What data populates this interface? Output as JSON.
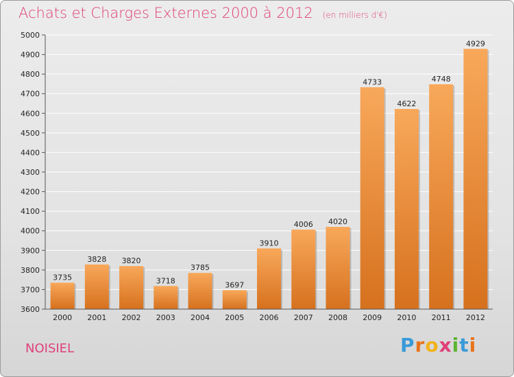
{
  "header": {
    "title": "Achats et Charges Externes 2000 à 2012",
    "subtitle": "(en milliers d'€)"
  },
  "footer": {
    "city": "NOISIEL",
    "logo": [
      "P",
      "r",
      "o",
      "x",
      "i",
      "t",
      "i"
    ],
    "logo_colors": [
      "#3a9ad9",
      "#e8731a",
      "#f2b21b",
      "#e0407a",
      "#5cb531",
      "#3a9ad9",
      "#e8731a"
    ]
  },
  "colors": {
    "bar_top": "#f8a85a",
    "bar_bottom": "#d6711e",
    "grid": "#ffffff",
    "title": "#e0407a"
  },
  "chart_data": {
    "type": "bar",
    "title": "Achats et Charges Externes 2000 à 2012",
    "subtitle": "(en milliers d'€)",
    "categories": [
      "2000",
      "2001",
      "2002",
      "2003",
      "2004",
      "2005",
      "2006",
      "2007",
      "2008",
      "2009",
      "2010",
      "2011",
      "2012"
    ],
    "values": [
      3735,
      3828,
      3820,
      3718,
      3785,
      3697,
      3910,
      4006,
      4020,
      4733,
      4622,
      4748,
      4929
    ],
    "ylim": [
      3600,
      5000
    ],
    "yticks": [
      3600,
      3700,
      3800,
      3900,
      4000,
      4100,
      4200,
      4300,
      4400,
      4500,
      4600,
      4700,
      4800,
      4900,
      5000
    ],
    "grid": true,
    "xlabel": "",
    "ylabel": ""
  }
}
